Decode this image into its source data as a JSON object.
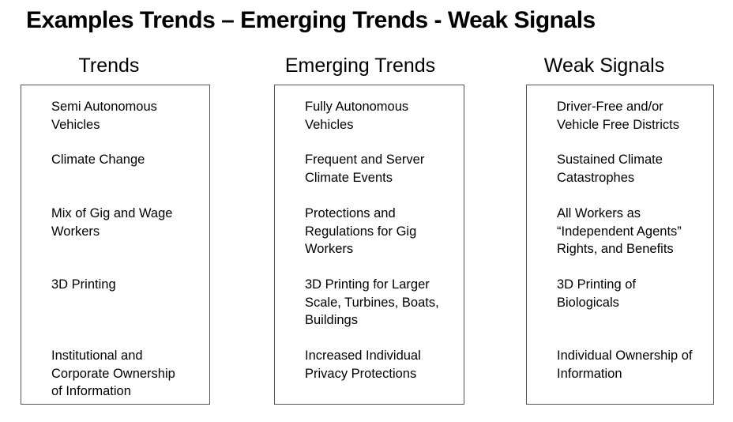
{
  "slide": {
    "title": "Examples Trends – Emerging Trends - Weak Signals"
  },
  "colors": {
    "background": "#ffffff",
    "text": "#000000",
    "box_border": "#555555"
  },
  "columns": [
    {
      "header": "Trends",
      "items": [
        "Semi Autonomous\nVehicles",
        "Climate Change",
        "Mix of Gig and Wage\nWorkers",
        "3D Printing",
        "Institutional and\nCorporate Ownership\nof Information"
      ]
    },
    {
      "header": "Emerging Trends",
      "items": [
        "Fully Autonomous\nVehicles",
        "Frequent and Server\nClimate Events",
        "Protections and\nRegulations for Gig\nWorkers",
        "3D Printing for Larger\nScale, Turbines, Boats,\nBuildings",
        "Increased Individual\nPrivacy Protections"
      ]
    },
    {
      "header": "Weak Signals",
      "items": [
        "Driver-Free and/or\nVehicle Free Districts",
        "Sustained Climate\nCatastrophes",
        "All Workers as\n“Independent Agents”\nRights, and Benefits",
        "3D Printing of\nBiologicals",
        "Individual Ownership of\nInformation"
      ]
    }
  ]
}
